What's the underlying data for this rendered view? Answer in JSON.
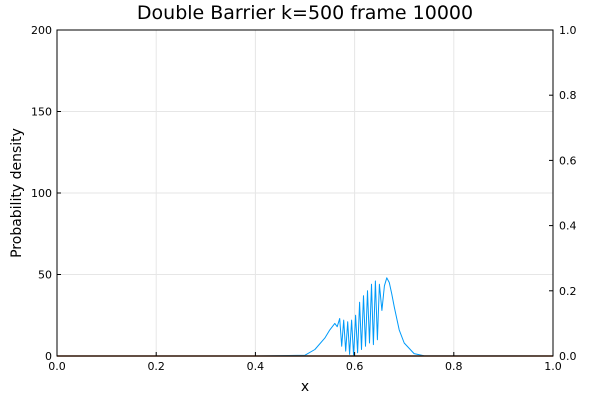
{
  "chart_data": {
    "type": "line",
    "title": "Double Barrier k=500 frame 10000",
    "xlabel": "x",
    "ylabel": "Probability density",
    "xlim": [
      0,
      1
    ],
    "ylim": [
      0,
      200
    ],
    "y2lim": [
      0,
      1
    ],
    "grid": true,
    "x_ticks": [
      "0.0",
      "0.2",
      "0.4",
      "0.6",
      "0.8",
      "1.0"
    ],
    "y_ticks": [
      "0",
      "50",
      "100",
      "150",
      "200"
    ],
    "y2_ticks": [
      "0.0",
      "0.2",
      "0.4",
      "0.6",
      "0.8",
      "1.0"
    ],
    "series": [
      {
        "color": "#009af9",
        "axis": "left",
        "x": [
          0.0,
          0.4,
          0.5,
          0.52,
          0.54,
          0.55,
          0.56,
          0.565,
          0.57,
          0.574,
          0.578,
          0.582,
          0.586,
          0.59,
          0.594,
          0.598,
          0.602,
          0.606,
          0.61,
          0.614,
          0.618,
          0.622,
          0.626,
          0.63,
          0.634,
          0.638,
          0.642,
          0.646,
          0.65,
          0.655,
          0.66,
          0.665,
          0.67,
          0.675,
          0.68,
          0.69,
          0.7,
          0.72,
          0.74,
          1.0
        ],
        "y": [
          0,
          0,
          0.5,
          4,
          11,
          16,
          20,
          18,
          23,
          6,
          22,
          3,
          21,
          1,
          22,
          0,
          25,
          2,
          33,
          4,
          37,
          6,
          40,
          8,
          44,
          7,
          46,
          10,
          44,
          28,
          43,
          48,
          45,
          38,
          30,
          16,
          8,
          1.5,
          0.2,
          0
        ]
      },
      {
        "color": "#e26f46",
        "axis": "left",
        "x": [
          0.0,
          1.0
        ],
        "y": [
          0,
          0
        ]
      },
      {
        "color": "#3da44d",
        "axis": "left",
        "x": [
          0.0,
          1.0
        ],
        "y": [
          0,
          0
        ]
      },
      {
        "color": "#c01515",
        "axis": "left",
        "x": [
          0.0,
          1.0
        ],
        "y": [
          0,
          0
        ]
      }
    ]
  }
}
